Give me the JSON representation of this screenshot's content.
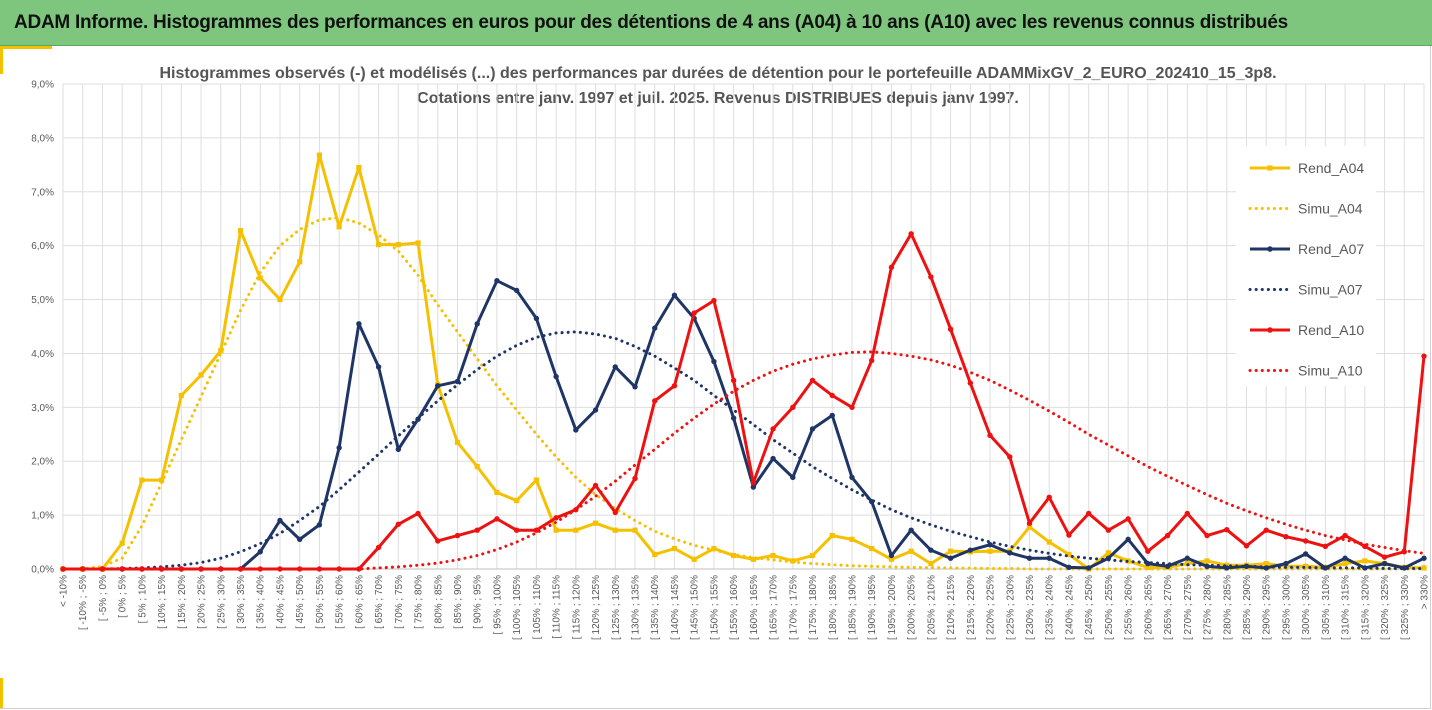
{
  "banner": {
    "title": "ADAM Informe. Histogrammes des performances en euros pour des détentions de 4 ans (A04) à 10 ans (A10) avec les revenus connus distribués"
  },
  "colors": {
    "a04": "#f5c000",
    "a07": "#1f3566",
    "a10": "#ee1111",
    "banner": "#7ec67e"
  },
  "chart_data": {
    "type": "line",
    "title_lines": [
      "Histogrammes observés (-) et modélisés (...) des performances par durées de détention pour  le portefeuille ADAMMixGV_2_EURO_202410_15_3p8.",
      "Cotations entre janv. 1997 et juil. 2025. Revenus DISTRIBUES depuis janv 1997."
    ],
    "ylim": [
      0,
      9
    ],
    "y_ticks": [
      "0,0%",
      "1,0%",
      "2,0%",
      "3,0%",
      "4,0%",
      "5,0%",
      "6,0%",
      "7,0%",
      "8,0%",
      "9,0%"
    ],
    "grid": true,
    "legend_position": "right",
    "categories": [
      "< -10%",
      "[ -10% ; -5%",
      "[ -5% ; 0%",
      "[ 0% ; 5%",
      "[ 5% ; 10%",
      "[ 10% ; 15%",
      "[ 15% ; 20%",
      "[ 20% ; 25%",
      "[ 25% ; 30%",
      "[ 30% ; 35%",
      "[ 35% ; 40%",
      "[ 40% ; 45%",
      "[ 45% ; 50%",
      "[ 50% ; 55%",
      "[ 55% ; 60%",
      "[ 60% ; 65%",
      "[ 65% ; 70%",
      "[ 70% ; 75%",
      "[ 75% ; 80%",
      "[ 80% ; 85%",
      "[ 85% ; 90%",
      "[ 90% ; 95%",
      "[ 95% ; 100%",
      "[ 100% ; 105%",
      "[ 105% ; 110%",
      "[ 110% ; 115%",
      "[ 115% ; 120%",
      "[ 120% ; 125%",
      "[ 125% ; 130%",
      "[ 130% ; 135%",
      "[ 135% ; 140%",
      "[ 140% ; 145%",
      "[ 145% ; 150%",
      "[ 150% ; 155%",
      "[ 155% ; 160%",
      "[ 160% ; 165%",
      "[ 165% ; 170%",
      "[ 170% ; 175%",
      "[ 175% ; 180%",
      "[ 180% ; 185%",
      "[ 185% ; 190%",
      "[ 190% ; 195%",
      "[ 195% ; 200%",
      "[ 200% ; 205%",
      "[ 205% ; 210%",
      "[ 210% ; 215%",
      "[ 215% ; 220%",
      "[ 220% ; 225%",
      "[ 225% ; 230%",
      "[ 230% ; 235%",
      "[ 235% ; 240%",
      "[ 240% ; 245%",
      "[ 245% ; 250%",
      "[ 250% ; 255%",
      "[ 255% ; 260%",
      "[ 260% ; 265%",
      "[ 265% ; 270%",
      "[ 270% ; 275%",
      "[ 275% ; 280%",
      "[ 280% ; 285%",
      "[ 285% ; 290%",
      "[ 290% ; 295%",
      "[ 295% ; 300%",
      "[ 300% ; 305%",
      "[ 305% ; 310%",
      "[ 310% ; 315%",
      "[ 315% ; 320%",
      "[ 320% ; 325%",
      "[ 325% ; 330%",
      "> 330%"
    ],
    "series": [
      {
        "name": "Rend_A04",
        "style": "solid",
        "marker": "square",
        "color": "#f5c000",
        "values": [
          0,
          0,
          0,
          0.48,
          1.65,
          1.65,
          3.22,
          3.6,
          4.05,
          6.28,
          5.4,
          5.0,
          5.7,
          7.68,
          6.35,
          7.45,
          6.02,
          6.02,
          6.05,
          3.42,
          2.35,
          1.9,
          1.42,
          1.27,
          1.65,
          0.72,
          0.72,
          0.85,
          0.72,
          0.72,
          0.27,
          0.38,
          0.18,
          0.38,
          0.25,
          0.18,
          0.25,
          0.15,
          0.25,
          0.62,
          0.55,
          0.38,
          0.18,
          0.33,
          0.1,
          0.33,
          0.32,
          0.33,
          0.33,
          0.78,
          0.5,
          0.27,
          0.0,
          0.3,
          0.15,
          0.03,
          0.03,
          0.1,
          0.15,
          0.07,
          0.07,
          0.1,
          0.05,
          0.05,
          0.03,
          0.1,
          0.15,
          0.1,
          0.03,
          0.02
        ]
      },
      {
        "name": "Simu_A04",
        "style": "dotted",
        "color": "#f5c000",
        "values": [
          0.0,
          0.0,
          0.05,
          0.2,
          0.8,
          1.6,
          2.4,
          3.2,
          4.0,
          4.8,
          5.5,
          6.0,
          6.3,
          6.48,
          6.52,
          6.42,
          6.2,
          5.9,
          5.45,
          4.9,
          4.4,
          3.9,
          3.4,
          2.95,
          2.5,
          2.08,
          1.7,
          1.38,
          1.12,
          0.9,
          0.7,
          0.56,
          0.44,
          0.35,
          0.27,
          0.21,
          0.17,
          0.13,
          0.1,
          0.08,
          0.06,
          0.05,
          0.04,
          0.03,
          0.025,
          0.02,
          0.015,
          0.01,
          0.01,
          0.0,
          0.0,
          0.0,
          0.0,
          0.0,
          0.0,
          0.0,
          0.0,
          0.0,
          0.0,
          0.0,
          0.0,
          0.0,
          0.0,
          0.0,
          0.0,
          0.0,
          0.0,
          0.0,
          0.0,
          0.0
        ]
      },
      {
        "name": "Rend_A07",
        "style": "solid",
        "marker": "circle",
        "color": "#1f3566",
        "values": [
          0,
          0,
          0,
          0,
          0,
          0,
          0,
          0,
          0,
          0,
          0.32,
          0.9,
          0.55,
          0.82,
          2.25,
          4.55,
          3.75,
          2.22,
          2.78,
          3.4,
          3.48,
          4.55,
          5.35,
          5.17,
          4.65,
          3.57,
          2.58,
          2.95,
          3.75,
          3.38,
          4.47,
          5.08,
          4.65,
          3.85,
          2.8,
          1.52,
          2.05,
          1.7,
          2.6,
          2.85,
          1.7,
          1.25,
          0.25,
          0.72,
          0.35,
          0.2,
          0.35,
          0.45,
          0.3,
          0.2,
          0.2,
          0.03,
          0.02,
          0.2,
          0.55,
          0.1,
          0.05,
          0.2,
          0.05,
          0.02,
          0.05,
          0.02,
          0.1,
          0.28,
          0.02,
          0.2,
          0.02,
          0.1,
          0.02,
          0.2
        ]
      },
      {
        "name": "Simu_A07",
        "style": "dotted",
        "color": "#1f3566",
        "values": [
          0.0,
          0.0,
          0.0,
          0.01,
          0.02,
          0.04,
          0.07,
          0.12,
          0.2,
          0.32,
          0.47,
          0.66,
          0.9,
          1.16,
          1.47,
          1.8,
          2.13,
          2.47,
          2.8,
          3.12,
          3.42,
          3.7,
          3.95,
          4.15,
          4.3,
          4.38,
          4.4,
          4.36,
          4.28,
          4.13,
          3.95,
          3.73,
          3.5,
          3.22,
          2.95,
          2.68,
          2.4,
          2.15,
          1.9,
          1.68,
          1.47,
          1.28,
          1.1,
          0.95,
          0.82,
          0.7,
          0.6,
          0.5,
          0.42,
          0.35,
          0.29,
          0.24,
          0.2,
          0.17,
          0.14,
          0.12,
          0.1,
          0.08,
          0.07,
          0.06,
          0.05,
          0.04,
          0.03,
          0.03,
          0.02,
          0.02,
          0.02,
          0.01,
          0.01,
          0.01
        ]
      },
      {
        "name": "Rend_A10",
        "style": "solid",
        "marker": "circle",
        "color": "#ee1111",
        "values": [
          0,
          0,
          0,
          0,
          0,
          0,
          0,
          0,
          0,
          0,
          0,
          0,
          0,
          0,
          0,
          0,
          0.4,
          0.83,
          1.03,
          0.52,
          0.62,
          0.72,
          0.93,
          0.72,
          0.72,
          0.95,
          1.1,
          1.55,
          1.05,
          1.68,
          3.12,
          3.4,
          4.75,
          4.98,
          3.5,
          1.6,
          2.6,
          3.0,
          3.5,
          3.22,
          3.0,
          3.87,
          5.6,
          6.22,
          5.42,
          4.45,
          3.45,
          2.48,
          2.08,
          0.85,
          1.33,
          0.63,
          1.03,
          0.72,
          0.93,
          0.33,
          0.62,
          1.03,
          0.62,
          0.73,
          0.43,
          0.72,
          0.6,
          0.52,
          0.42,
          0.62,
          0.42,
          0.22,
          0.32,
          3.95
        ]
      },
      {
        "name": "Simu_A10",
        "style": "dotted",
        "color": "#ee1111",
        "values": [
          0.0,
          0.0,
          0.0,
          0.0,
          0.0,
          0.0,
          0.0,
          0.0,
          0.0,
          0.0,
          0.0,
          0.0,
          0.0,
          0.0,
          0.0,
          0.0,
          0.02,
          0.04,
          0.07,
          0.11,
          0.17,
          0.25,
          0.36,
          0.5,
          0.67,
          0.87,
          1.1,
          1.35,
          1.63,
          1.93,
          2.22,
          2.52,
          2.8,
          3.06,
          3.3,
          3.5,
          3.67,
          3.8,
          3.9,
          3.97,
          4.02,
          4.03,
          4.0,
          3.95,
          3.88,
          3.78,
          3.65,
          3.5,
          3.32,
          3.13,
          2.93,
          2.72,
          2.5,
          2.3,
          2.1,
          1.9,
          1.72,
          1.55,
          1.38,
          1.22,
          1.08,
          0.95,
          0.83,
          0.72,
          0.62,
          0.54,
          0.46,
          0.4,
          0.34,
          0.29
        ]
      }
    ]
  }
}
